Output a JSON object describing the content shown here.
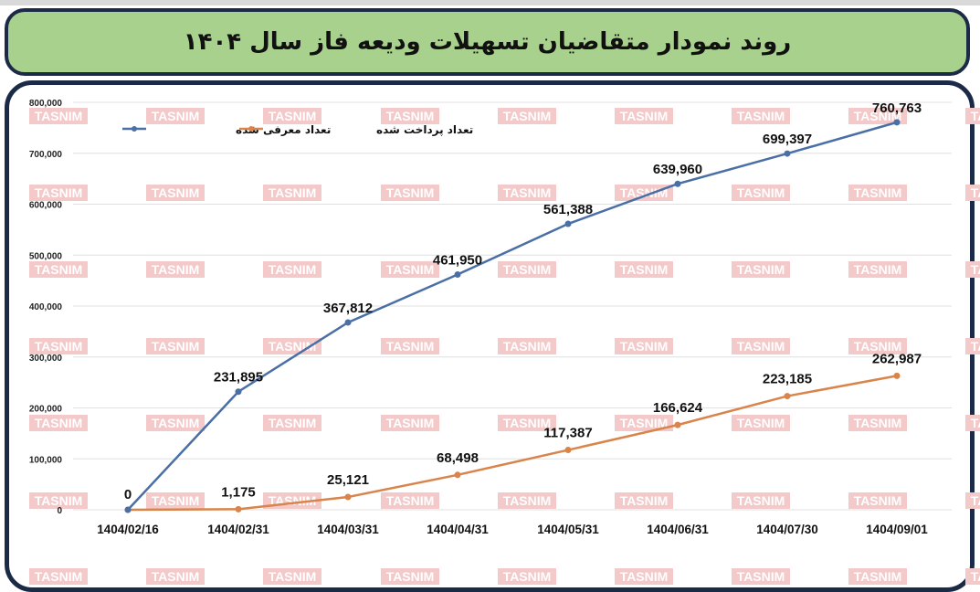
{
  "title": "روند نمودار متقاضیان تسهیلات ودیعه فاز سال ۱۴۰۴",
  "watermark": "TASNIM",
  "colors": {
    "title_bg": "#a9d18e",
    "border": "#1b2a47",
    "series_introduced": "#4a6fa5",
    "series_paid": "#d9844a",
    "gridline": "#e0e0e0"
  },
  "legend": {
    "introduced": "تعداد معرفی شده",
    "paid": "تعداد پرداخت شده"
  },
  "chart_data": {
    "type": "line",
    "title": "روند نمودار متقاضیان تسهیلات ودیعه فاز سال ۱۴۰۴",
    "xlabel": "",
    "ylabel": "",
    "ylim": [
      0,
      800000
    ],
    "grid": true,
    "legend_position": "top-left",
    "y_ticks": [
      "0",
      "100,000",
      "200,000",
      "300,000",
      "400,000",
      "500,000",
      "600,000",
      "700,000",
      "800,000"
    ],
    "categories": [
      "1404/02/16",
      "1404/02/31",
      "1404/03/31",
      "1404/04/31",
      "1404/05/31",
      "1404/06/31",
      "1404/07/30",
      "1404/09/01"
    ],
    "series": [
      {
        "name": "تعداد معرفی شده",
        "color": "#4a6fa5",
        "values": [
          0,
          231895,
          367812,
          461950,
          561388,
          639960,
          699397,
          760763
        ],
        "labels": [
          "0",
          "231,895",
          "367,812",
          "461,950",
          "561,388",
          "639,960",
          "699,397",
          "760,763"
        ]
      },
      {
        "name": "تعداد پرداخت شده",
        "color": "#d9844a",
        "values": [
          0,
          1175,
          25121,
          68498,
          117387,
          166624,
          223185,
          262987
        ],
        "labels": [
          "0",
          "1,175",
          "25,121",
          "68,498",
          "117,387",
          "166,624",
          "223,185",
          "262,987"
        ]
      }
    ]
  }
}
